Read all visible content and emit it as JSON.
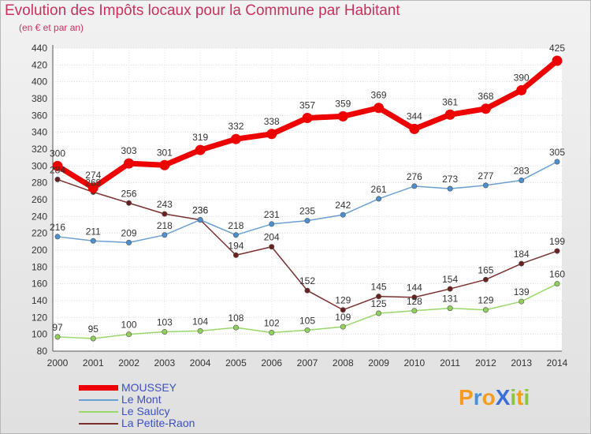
{
  "header": {
    "title": "Evolution des Impôts locaux pour la Commune par Habitant",
    "subtitle": "(en € et par an)"
  },
  "logo": {
    "text": "ProXiti",
    "letters": [
      {
        "ch": "P",
        "color": "#f39c1f"
      },
      {
        "ch": "r",
        "color": "#4a90d9"
      },
      {
        "ch": "o",
        "color": "#f39c1f"
      },
      {
        "ch": "X",
        "color": "#3b6ed6"
      },
      {
        "ch": "i",
        "color": "#8cc63f"
      },
      {
        "ch": "t",
        "color": "#f39c1f"
      },
      {
        "ch": "i",
        "color": "#8cc63f"
      }
    ]
  },
  "chart_data": {
    "type": "line",
    "title": "Evolution des Impôts locaux pour la Commune par Habitant",
    "subtitle": "(en € et par an)",
    "xlabel": "",
    "ylabel": "",
    "x": [
      2000,
      2001,
      2002,
      2003,
      2004,
      2005,
      2006,
      2007,
      2008,
      2009,
      2010,
      2011,
      2012,
      2013,
      2014
    ],
    "ylim": [
      80,
      440
    ],
    "yticks": [
      80,
      100,
      120,
      140,
      160,
      180,
      200,
      220,
      240,
      260,
      280,
      300,
      320,
      340,
      360,
      380,
      400,
      420,
      440
    ],
    "grid": true,
    "legend_position": "bottom-left",
    "series": [
      {
        "name": "MOUSSEY",
        "color": "#ee0000",
        "marker": "#ee0000",
        "bold": true,
        "values": [
          300,
          274,
          303,
          301,
          319,
          332,
          338,
          357,
          359,
          369,
          344,
          361,
          368,
          390,
          425
        ]
      },
      {
        "name": "Le Mont",
        "color": "#6a9fd4",
        "marker": "#4a8fd0",
        "bold": false,
        "values": [
          216,
          211,
          209,
          218,
          236,
          218,
          231,
          235,
          242,
          261,
          276,
          273,
          277,
          283,
          305
        ]
      },
      {
        "name": "Le Saulcy",
        "color": "#9ad86a",
        "marker": "#8fd05a",
        "bold": false,
        "values": [
          97,
          95,
          100,
          103,
          104,
          108,
          102,
          105,
          109,
          125,
          128,
          131,
          129,
          139,
          160
        ]
      },
      {
        "name": "La Petite-Raon",
        "color": "#7a2f2f",
        "marker": "#6b2020",
        "bold": false,
        "values": [
          284,
          269,
          256,
          243,
          236,
          194,
          204,
          152,
          129,
          145,
          144,
          154,
          165,
          184,
          199
        ]
      }
    ]
  }
}
